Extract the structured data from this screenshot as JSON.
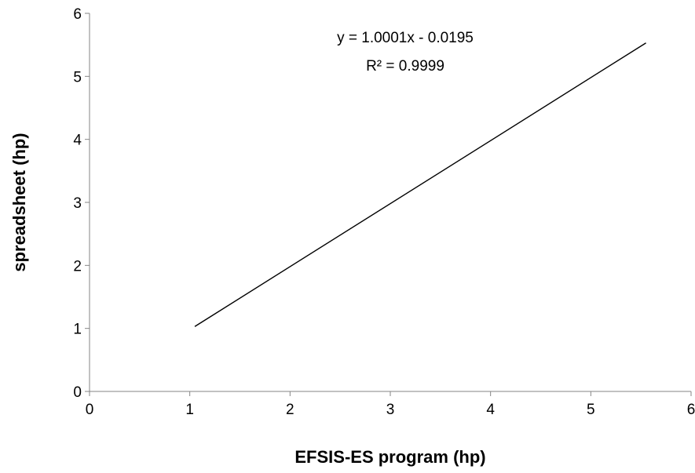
{
  "chart_data": {
    "type": "line",
    "title": "",
    "xlabel": "EFSIS-ES program (hp)",
    "ylabel": "spreadsheet (hp)",
    "xlim": [
      0,
      6
    ],
    "ylim": [
      0,
      6
    ],
    "xticks": [
      0,
      1,
      2,
      3,
      4,
      5,
      6
    ],
    "yticks": [
      0,
      1,
      2,
      3,
      4,
      5,
      6
    ],
    "grid": false,
    "legend": "none",
    "series": [
      {
        "x": [
          1.05,
          5.55
        ],
        "y": [
          1.03,
          5.53
        ],
        "color": "#000000"
      }
    ],
    "annotations": {
      "equation": "y = 1.0001x - 0.0195",
      "r_squared": "R² = 0.9999"
    }
  }
}
